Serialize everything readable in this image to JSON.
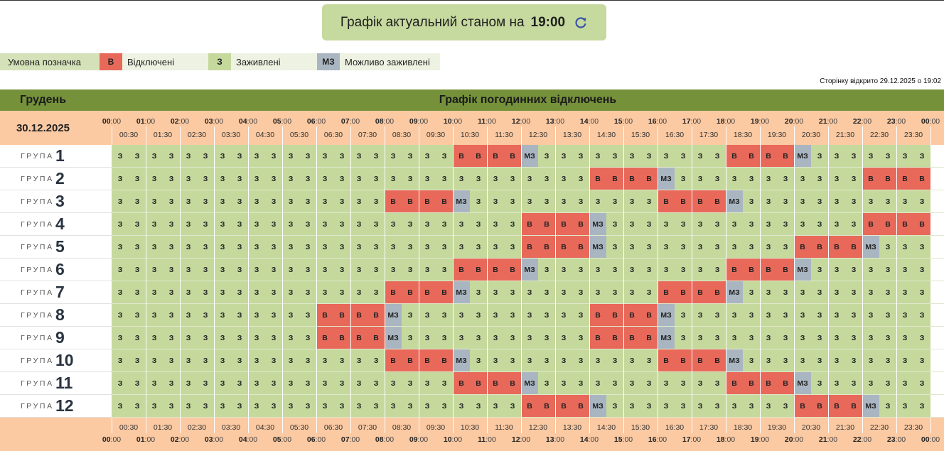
{
  "header": {
    "status_text": "Графік актуальний станом на",
    "status_time": "19:00",
    "refresh_icon": "refresh-icon"
  },
  "legend": {
    "caption": "Умовна позначка",
    "items": [
      {
        "code": "В",
        "label": "Відключені",
        "color": "#e8695a"
      },
      {
        "code": "З",
        "label": "Заживлені",
        "color": "#c5d99d"
      },
      {
        "code": "МЗ",
        "label": "Можливо заживлені",
        "color": "#a9b6c2"
      }
    ]
  },
  "page_opened": "Сторінку відкрито 29.12.2025 о 19:02",
  "schedule": {
    "month": "Грудень",
    "title": "Графік погодинних відключень",
    "date": "30.12.2025",
    "group_word": "ГРУПА",
    "hours": [
      "00",
      "01",
      "02",
      "03",
      "04",
      "05",
      "06",
      "07",
      "08",
      "09",
      "10",
      "11",
      "12",
      "13",
      "14",
      "15",
      "16",
      "17",
      "18",
      "19",
      "20",
      "21",
      "22",
      "23",
      "00"
    ],
    "minutes": ":00",
    "half_hours": [
      "00:30",
      "01:30",
      "02:30",
      "03:30",
      "04:30",
      "05:30",
      "06:30",
      "07:30",
      "08:30",
      "09:30",
      "10:30",
      "11:30",
      "12:30",
      "13:30",
      "14:30",
      "15:30",
      "16:30",
      "17:30",
      "18:30",
      "19:30",
      "20:30",
      "21:30",
      "22:30",
      "23:30"
    ],
    "colors": {
      "on": "#c5d99d",
      "off": "#e8695a",
      "maybe": "#a9b6c2",
      "header": "#75913a",
      "peach": "#fbc9a2"
    },
    "groups": [
      {
        "number": "1",
        "cells": [
          "З",
          "З",
          "З",
          "З",
          "З",
          "З",
          "З",
          "З",
          "З",
          "З",
          "З",
          "З",
          "З",
          "З",
          "З",
          "З",
          "З",
          "З",
          "З",
          "З",
          "В",
          "В",
          "В",
          "В",
          "МЗ",
          "З",
          "З",
          "З",
          "З",
          "З",
          "З",
          "З",
          "З",
          "З",
          "З",
          "З",
          "В",
          "В",
          "В",
          "В",
          "МЗ",
          "З",
          "З",
          "З",
          "З",
          "З",
          "З",
          "З"
        ]
      },
      {
        "number": "2",
        "cells": [
          "З",
          "З",
          "З",
          "З",
          "З",
          "З",
          "З",
          "З",
          "З",
          "З",
          "З",
          "З",
          "З",
          "З",
          "З",
          "З",
          "З",
          "З",
          "З",
          "З",
          "З",
          "З",
          "З",
          "З",
          "З",
          "З",
          "З",
          "З",
          "В",
          "В",
          "В",
          "В",
          "МЗ",
          "З",
          "З",
          "З",
          "З",
          "З",
          "З",
          "З",
          "З",
          "З",
          "З",
          "З",
          "В",
          "В",
          "В",
          "В"
        ]
      },
      {
        "number": "3",
        "cells": [
          "З",
          "З",
          "З",
          "З",
          "З",
          "З",
          "З",
          "З",
          "З",
          "З",
          "З",
          "З",
          "З",
          "З",
          "З",
          "З",
          "В",
          "В",
          "В",
          "В",
          "МЗ",
          "З",
          "З",
          "З",
          "З",
          "З",
          "З",
          "З",
          "З",
          "З",
          "З",
          "З",
          "В",
          "В",
          "В",
          "В",
          "МЗ",
          "З",
          "З",
          "З",
          "З",
          "З",
          "З",
          "З",
          "З",
          "З",
          "З",
          "З"
        ]
      },
      {
        "number": "4",
        "cells": [
          "З",
          "З",
          "З",
          "З",
          "З",
          "З",
          "З",
          "З",
          "З",
          "З",
          "З",
          "З",
          "З",
          "З",
          "З",
          "З",
          "З",
          "З",
          "З",
          "З",
          "З",
          "З",
          "З",
          "З",
          "В",
          "В",
          "В",
          "В",
          "МЗ",
          "З",
          "З",
          "З",
          "З",
          "З",
          "З",
          "З",
          "З",
          "З",
          "З",
          "З",
          "З",
          "З",
          "З",
          "З",
          "В",
          "В",
          "В",
          "В"
        ]
      },
      {
        "number": "5",
        "cells": [
          "З",
          "З",
          "З",
          "З",
          "З",
          "З",
          "З",
          "З",
          "З",
          "З",
          "З",
          "З",
          "З",
          "З",
          "З",
          "З",
          "З",
          "З",
          "З",
          "З",
          "З",
          "З",
          "З",
          "З",
          "В",
          "В",
          "В",
          "В",
          "МЗ",
          "З",
          "З",
          "З",
          "З",
          "З",
          "З",
          "З",
          "З",
          "З",
          "З",
          "З",
          "В",
          "В",
          "В",
          "В",
          "МЗ",
          "З",
          "З",
          "З"
        ]
      },
      {
        "number": "6",
        "cells": [
          "З",
          "З",
          "З",
          "З",
          "З",
          "З",
          "З",
          "З",
          "З",
          "З",
          "З",
          "З",
          "З",
          "З",
          "З",
          "З",
          "З",
          "З",
          "З",
          "З",
          "В",
          "В",
          "В",
          "В",
          "МЗ",
          "З",
          "З",
          "З",
          "З",
          "З",
          "З",
          "З",
          "З",
          "З",
          "З",
          "З",
          "В",
          "В",
          "В",
          "В",
          "МЗ",
          "З",
          "З",
          "З",
          "З",
          "З",
          "З",
          "З"
        ]
      },
      {
        "number": "7",
        "cells": [
          "З",
          "З",
          "З",
          "З",
          "З",
          "З",
          "З",
          "З",
          "З",
          "З",
          "З",
          "З",
          "З",
          "З",
          "З",
          "З",
          "В",
          "В",
          "В",
          "В",
          "МЗ",
          "З",
          "З",
          "З",
          "З",
          "З",
          "З",
          "З",
          "З",
          "З",
          "З",
          "З",
          "В",
          "В",
          "В",
          "В",
          "МЗ",
          "З",
          "З",
          "З",
          "З",
          "З",
          "З",
          "З",
          "З",
          "З",
          "З",
          "З"
        ]
      },
      {
        "number": "8",
        "cells": [
          "З",
          "З",
          "З",
          "З",
          "З",
          "З",
          "З",
          "З",
          "З",
          "З",
          "З",
          "З",
          "В",
          "В",
          "В",
          "В",
          "МЗ",
          "З",
          "З",
          "З",
          "З",
          "З",
          "З",
          "З",
          "З",
          "З",
          "З",
          "З",
          "В",
          "В",
          "В",
          "В",
          "МЗ",
          "З",
          "З",
          "З",
          "З",
          "З",
          "З",
          "З",
          "З",
          "З",
          "З",
          "З",
          "З",
          "З",
          "З",
          "З"
        ]
      },
      {
        "number": "9",
        "cells": [
          "З",
          "З",
          "З",
          "З",
          "З",
          "З",
          "З",
          "З",
          "З",
          "З",
          "З",
          "З",
          "В",
          "В",
          "В",
          "В",
          "МЗ",
          "З",
          "З",
          "З",
          "З",
          "З",
          "З",
          "З",
          "З",
          "З",
          "З",
          "З",
          "В",
          "В",
          "В",
          "В",
          "МЗ",
          "З",
          "З",
          "З",
          "З",
          "З",
          "З",
          "З",
          "З",
          "З",
          "З",
          "З",
          "З",
          "З",
          "З",
          "З"
        ]
      },
      {
        "number": "10",
        "cells": [
          "З",
          "З",
          "З",
          "З",
          "З",
          "З",
          "З",
          "З",
          "З",
          "З",
          "З",
          "З",
          "З",
          "З",
          "З",
          "З",
          "В",
          "В",
          "В",
          "В",
          "МЗ",
          "З",
          "З",
          "З",
          "З",
          "З",
          "З",
          "З",
          "З",
          "З",
          "З",
          "З",
          "В",
          "В",
          "В",
          "В",
          "МЗ",
          "З",
          "З",
          "З",
          "З",
          "З",
          "З",
          "З",
          "З",
          "З",
          "З",
          "З"
        ]
      },
      {
        "number": "11",
        "cells": [
          "З",
          "З",
          "З",
          "З",
          "З",
          "З",
          "З",
          "З",
          "З",
          "З",
          "З",
          "З",
          "З",
          "З",
          "З",
          "З",
          "З",
          "З",
          "З",
          "З",
          "В",
          "В",
          "В",
          "В",
          "МЗ",
          "З",
          "З",
          "З",
          "З",
          "З",
          "З",
          "З",
          "З",
          "З",
          "З",
          "З",
          "В",
          "В",
          "В",
          "В",
          "МЗ",
          "З",
          "З",
          "З",
          "З",
          "З",
          "З",
          "З"
        ]
      },
      {
        "number": "12",
        "cells": [
          "З",
          "З",
          "З",
          "З",
          "З",
          "З",
          "З",
          "З",
          "З",
          "З",
          "З",
          "З",
          "З",
          "З",
          "З",
          "З",
          "З",
          "З",
          "З",
          "З",
          "З",
          "З",
          "З",
          "З",
          "В",
          "В",
          "В",
          "В",
          "МЗ",
          "З",
          "З",
          "З",
          "З",
          "З",
          "З",
          "З",
          "З",
          "З",
          "З",
          "З",
          "В",
          "В",
          "В",
          "В",
          "МЗ",
          "З",
          "З",
          "З"
        ]
      }
    ]
  }
}
